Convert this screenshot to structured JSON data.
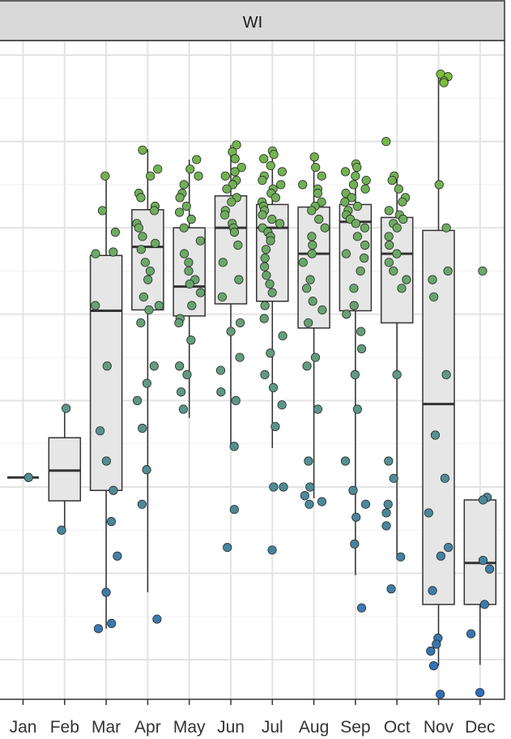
{
  "facet": {
    "label": "WI"
  },
  "chart_data": {
    "type": "boxplot-jitter",
    "facet": "WI",
    "categories": [
      "Jan",
      "Feb",
      "Mar",
      "Apr",
      "May",
      "Jun",
      "Jul",
      "Aug",
      "Sep",
      "Oct",
      "Nov",
      "Dec"
    ],
    "ylim": [
      0.27,
      8.45
    ],
    "grid": true,
    "y_tick_labels_visible": false,
    "color_scale": {
      "low": "#2d6fbb",
      "mid": "#5f9985",
      "high": "#7bbf3a"
    },
    "boxes": [
      {
        "category": "Jan",
        "q1": 3.11,
        "median": 3.11,
        "q3": 3.11,
        "whisker_low": 3.11,
        "whisker_high": 3.11
      },
      {
        "category": "Feb",
        "q1": 2.84,
        "median": 3.19,
        "q3": 3.57,
        "whisker_low": 2.5,
        "whisker_high": 3.91
      },
      {
        "category": "Mar",
        "q1": 2.96,
        "median": 5.04,
        "q3": 5.68,
        "whisker_low": 1.36,
        "whisker_high": 6.62
      },
      {
        "category": "Apr",
        "q1": 5.05,
        "median": 5.78,
        "q3": 6.21,
        "whisker_low": 1.78,
        "whisker_high": 6.91
      },
      {
        "category": "May",
        "q1": 4.98,
        "median": 5.32,
        "q3": 6.0,
        "whisker_low": 3.8,
        "whisker_high": 6.79
      },
      {
        "category": "Jun",
        "q1": 5.12,
        "median": 6.0,
        "q3": 6.37,
        "whisker_low": 3.47,
        "whisker_high": 6.96
      },
      {
        "category": "Jul",
        "q1": 5.15,
        "median": 6.0,
        "q3": 6.27,
        "whisker_low": 3.45,
        "whisker_high": 6.89
      },
      {
        "category": "Aug",
        "q1": 4.84,
        "median": 5.7,
        "q3": 6.24,
        "whisker_low": 2.87,
        "whisker_high": 6.82
      },
      {
        "category": "Sep",
        "q1": 5.04,
        "median": 6.07,
        "q3": 6.27,
        "whisker_low": 1.98,
        "whisker_high": 6.74
      },
      {
        "category": "Oct",
        "q1": 4.9,
        "median": 5.7,
        "q3": 6.12,
        "whisker_low": 2.19,
        "whisker_high": 6.62
      },
      {
        "category": "Nov",
        "q1": 1.64,
        "median": 3.96,
        "q3": 5.97,
        "whisker_low": 0.93,
        "whisker_high": 7.75
      },
      {
        "category": "Dec",
        "q1": 1.64,
        "median": 2.12,
        "q3": 2.85,
        "whisker_low": 0.94,
        "whisker_high": 2.85
      }
    ],
    "points": [
      {
        "category": "Jan",
        "values": [
          3.11
        ]
      },
      {
        "category": "Feb",
        "values": [
          3.91,
          2.5
        ]
      },
      {
        "category": "Mar",
        "values": [
          6.6,
          6.2,
          5.95,
          5.7,
          5.72,
          5.1,
          4.4,
          3.65,
          3.3,
          2.96,
          2.6,
          2.2,
          1.78,
          1.42,
          1.36
        ]
      },
      {
        "category": "Apr",
        "values": [
          6.9,
          6.68,
          6.6,
          6.4,
          6.35,
          6.25,
          6.2,
          6.05,
          6.0,
          5.9,
          5.82,
          5.75,
          5.6,
          5.5,
          5.4,
          5.2,
          5.1,
          5.05,
          4.9,
          4.4,
          4.2,
          4.0,
          3.68,
          3.2,
          2.8,
          1.47
        ]
      },
      {
        "category": "May",
        "values": [
          6.79,
          6.68,
          6.6,
          6.5,
          6.4,
          6.35,
          6.25,
          6.18,
          6.1,
          6.0,
          5.85,
          5.7,
          5.6,
          5.5,
          5.4,
          5.35,
          5.25,
          5.1,
          4.95,
          4.9,
          4.7,
          4.4,
          4.3,
          4.1,
          3.9
        ]
      },
      {
        "category": "Jun",
        "values": [
          6.96,
          6.88,
          6.8,
          6.7,
          6.65,
          6.6,
          6.55,
          6.5,
          6.45,
          6.35,
          6.3,
          6.2,
          6.15,
          6.05,
          6.0,
          5.95,
          5.8,
          5.6,
          5.4,
          5.2,
          4.9,
          4.8,
          4.5,
          4.35,
          4.1,
          4.0,
          3.47,
          2.74,
          2.3
        ]
      },
      {
        "category": "Jul",
        "values": [
          6.89,
          6.85,
          6.8,
          6.72,
          6.65,
          6.6,
          6.55,
          6.5,
          6.45,
          6.4,
          6.35,
          6.3,
          6.25,
          6.2,
          6.15,
          6.1,
          6.05,
          6.0,
          5.95,
          5.9,
          5.85,
          5.75,
          5.65,
          5.55,
          5.45,
          5.35,
          5.25,
          5.1,
          4.95,
          4.75,
          4.55,
          4.3,
          4.15,
          3.95,
          3.7,
          3.0,
          3.0,
          2.27
        ]
      },
      {
        "category": "Aug",
        "values": [
          6.82,
          6.7,
          6.6,
          6.5,
          6.45,
          6.4,
          6.3,
          6.25,
          6.2,
          6.1,
          6.0,
          5.9,
          5.8,
          5.7,
          5.6,
          5.4,
          5.3,
          5.15,
          5.05,
          4.9,
          4.5,
          4.4,
          3.9,
          3.3,
          3.0,
          2.9,
          2.83,
          2.8
        ]
      },
      {
        "category": "Sep",
        "values": [
          6.74,
          6.7,
          6.65,
          6.6,
          6.55,
          6.5,
          6.45,
          6.4,
          6.35,
          6.3,
          6.25,
          6.2,
          6.15,
          6.1,
          6.05,
          6.0,
          5.9,
          5.8,
          5.7,
          5.65,
          5.5,
          5.3,
          5.1,
          5.0,
          4.8,
          4.6,
          4.3,
          3.9,
          3.3,
          2.96,
          2.8,
          2.65,
          2.34,
          1.6
        ]
      },
      {
        "category": "Oct",
        "values": [
          7.0,
          6.6,
          6.55,
          6.45,
          6.35,
          6.3,
          6.2,
          6.15,
          6.1,
          6.05,
          6.0,
          5.9,
          5.8,
          5.7,
          5.6,
          5.5,
          5.4,
          5.3,
          4.3,
          3.3,
          3.1,
          2.8,
          2.7,
          2.55,
          2.19,
          1.82
        ]
      },
      {
        "category": "Nov",
        "values": [
          7.78,
          7.75,
          7.7,
          7.68,
          6.5,
          6.0,
          5.5,
          5.4,
          5.2,
          4.3,
          3.6,
          3.1,
          2.7,
          2.3,
          2.2,
          1.8,
          1.25,
          1.18,
          1.1,
          0.93,
          0.6
        ]
      },
      {
        "category": "Dec",
        "values": [
          5.5,
          2.88,
          2.85,
          2.15,
          2.05,
          1.64,
          1.3,
          0.62
        ]
      }
    ]
  }
}
